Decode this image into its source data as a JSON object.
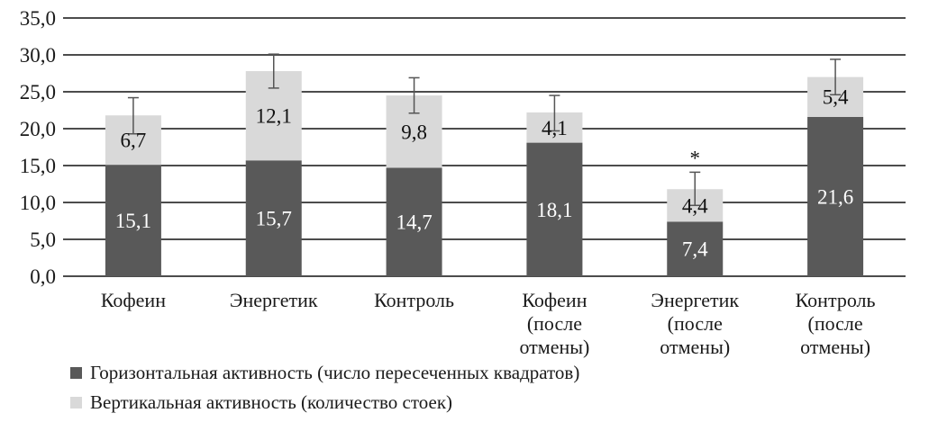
{
  "chart_data": {
    "type": "bar",
    "stacked": true,
    "title": "",
    "xlabel": "",
    "ylabel": "",
    "ylim": [
      0,
      35
    ],
    "y_ticks": [
      "0,0",
      "5,0",
      "10,0",
      "15,0",
      "20,0",
      "25,0",
      "30,0",
      "35,0"
    ],
    "grid": true,
    "legend_position": "bottom-left",
    "categories": [
      [
        "Кофеин"
      ],
      [
        "Энергетик"
      ],
      [
        "Контроль"
      ],
      [
        "Кофеин",
        "(после",
        "отмены)"
      ],
      [
        "Энергетик",
        "(после",
        "отмены)"
      ],
      [
        "Контроль",
        "(после",
        "отмены)"
      ]
    ],
    "series": [
      {
        "name": "Горизонтальная активность (число пересеченных квадратов)",
        "color": "#595959",
        "values": [
          15.1,
          15.7,
          14.7,
          18.1,
          7.4,
          21.6
        ],
        "labels": [
          "15,1",
          "15,7",
          "14,7",
          "18,1",
          "7,4",
          "21,6"
        ]
      },
      {
        "name": "Вертикальная активность (количество стоек)",
        "color": "#d9d9d9",
        "values": [
          6.7,
          12.1,
          9.8,
          4.1,
          4.4,
          5.4
        ],
        "labels": [
          "6,7",
          "12,1",
          "9,8",
          "4,1",
          "4,4",
          "5,4"
        ]
      }
    ],
    "error_bars": [
      {
        "low": 19.3,
        "high": 24.2
      },
      {
        "low": 25.5,
        "high": 30.1
      },
      {
        "low": 22.1,
        "high": 26.9
      },
      {
        "low": 19.7,
        "high": 24.5
      },
      {
        "low": 9.6,
        "high": 14.1
      },
      {
        "low": 24.6,
        "high": 29.4
      }
    ],
    "annotations": [
      {
        "category_index": 4,
        "text": "*"
      }
    ]
  }
}
